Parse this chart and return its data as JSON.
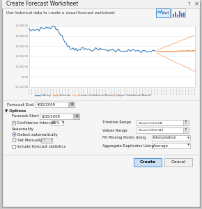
{
  "title": "Create Forecast Worksheet",
  "subtitle": "Use historical data to create a visual forecast worksheet",
  "bg_color": "#c8c8c8",
  "dialog_bg": "#f5f5f5",
  "title_bar_color": "#f0f0f0",
  "border_color": "#999999",
  "forecast_end_label": "Forecast End",
  "forecast_end_val": "4/30/2009",
  "options_label": "▼ Options",
  "forecast_start_label": "Forecast Start",
  "forecast_start_val": "6/30/2008",
  "confidence_interval_label": "Confidence Interval",
  "confidence_interval_val": "95%",
  "seasonality_label": "Seasonality",
  "detect_auto_label": "Detect automatically",
  "set_manually_label": "Set Manually",
  "set_manually_val": "4",
  "include_forecast_label": "Include forecast statistics",
  "timeline_range_label": "Timeline Range",
  "timeline_range_val": "Sheet1!$C$5:$C$341",
  "values_range_label": "Values Range",
  "values_range_val": "Sheet1!$D$5:$D$341",
  "fill_missing_label": "Fill Missing Points Using",
  "fill_missing_val": "Interpolation",
  "aggregate_label": "Aggregate Duplicates Using",
  "aggregate_val": "Average",
  "create_btn": "Create",
  "cancel_btn": "Cancel",
  "legend_history": "History",
  "legend_forecast": "Forecast",
  "legend_lower": "Lower Confidence Bound",
  "legend_upper": "Upper Confidence Bound",
  "history_color": "#2e75b6",
  "forecast_color": "#ed7d31",
  "lower_conf_color": "#f4b183",
  "upper_conf_color": "#f4b183",
  "ytick_labels": [
    "$5,000.00",
    "$4,000.00",
    "$3,000.00",
    "$2,000.00",
    "$1,000.00",
    "$0.00",
    "-$1,000.00"
  ],
  "create_btn_color": "#cce0f5",
  "create_btn_border": "#5b9bd5",
  "cancel_btn_color": "#f0f0f0",
  "cancel_btn_border": "#aaaaaa",
  "chart_area_color": "#ffffff",
  "grid_color": "#e8e8e8"
}
